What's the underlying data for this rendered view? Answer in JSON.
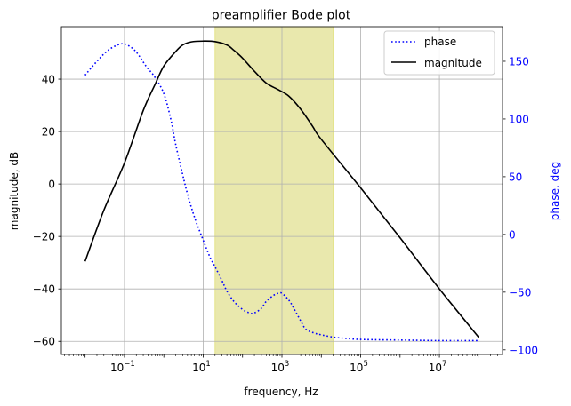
{
  "chart_data": {
    "type": "line",
    "title": "preamplifier Bode plot",
    "xlabel": "frequency, Hz",
    "ylabel_left": "magnitude, dB",
    "ylabel_right": "phase, deg",
    "x_scale": "log",
    "xlim": [
      0.0025,
      400000000
    ],
    "ylim_left": [
      -65,
      60
    ],
    "ylim_right": [
      -104,
      180
    ],
    "x_ticks": [
      {
        "value": 0.1,
        "base": "10",
        "exp": "−1"
      },
      {
        "value": 10,
        "base": "10",
        "exp": "1"
      },
      {
        "value": 1000,
        "base": "10",
        "exp": "3"
      },
      {
        "value": 100000,
        "base": "10",
        "exp": "5"
      },
      {
        "value": 10000000,
        "base": "10",
        "exp": "7"
      }
    ],
    "y_ticks_left": [
      -60,
      -40,
      -20,
      0,
      20,
      40
    ],
    "y_tick_labels_left": [
      "−60",
      "−40",
      "−20",
      "0",
      "20",
      "40"
    ],
    "y_ticks_right": [
      -100,
      -50,
      0,
      50,
      100,
      150
    ],
    "y_tick_labels_right": [
      "−100",
      "−50",
      "0",
      "50",
      "100",
      "150"
    ],
    "grid": true,
    "legend_position": "top-right",
    "shaded_band": {
      "x_start": 20,
      "x_end": 20000,
      "color": "#e9e8ad",
      "edge_color": "#e4e48a"
    },
    "series": [
      {
        "name": "phase",
        "axis": "right",
        "color": "#0000ff",
        "style": "dotted",
        "x": [
          0.01,
          0.02,
          0.04,
          0.08,
          0.12,
          0.2,
          0.35,
          0.6,
          1,
          1.5,
          2,
          3,
          4,
          6,
          10,
          15,
          20,
          30,
          40,
          60,
          100,
          150,
          200,
          300,
          400,
          600,
          800,
          1000,
          1500,
          2000,
          3000,
          4000,
          6000,
          10000,
          20000,
          40000,
          100000,
          1000000,
          10000000,
          100000000
        ],
        "y": [
          138,
          150,
          160,
          165,
          164,
          158,
          146,
          136,
          122,
          100,
          78,
          52,
          35,
          15,
          -5,
          -20,
          -28,
          -40,
          -49,
          -58,
          -65,
          -68,
          -68,
          -64,
          -58,
          -53,
          -51,
          -51,
          -57,
          -64,
          -75,
          -82,
          -85,
          -87,
          -89,
          -90,
          -91,
          -91.5,
          -92,
          -92
        ]
      },
      {
        "name": "magnitude",
        "axis": "left",
        "color": "#000000",
        "style": "solid",
        "x": [
          0.01,
          0.03,
          0.1,
          0.3,
          0.6,
          1,
          2,
          3,
          5,
          10,
          20,
          40,
          60,
          100,
          200,
          400,
          800,
          1500,
          3000,
          6000,
          10000,
          100000,
          1000000,
          10000000,
          100000000
        ],
        "y": [
          -29.5,
          -10,
          8,
          28,
          38,
          45,
          50.5,
          53,
          54.2,
          54.5,
          54.3,
          53,
          51,
          48,
          43,
          38.5,
          36,
          33.5,
          28.5,
          22,
          17,
          -1.5,
          -20.5,
          -40,
          -58.5
        ]
      }
    ]
  }
}
